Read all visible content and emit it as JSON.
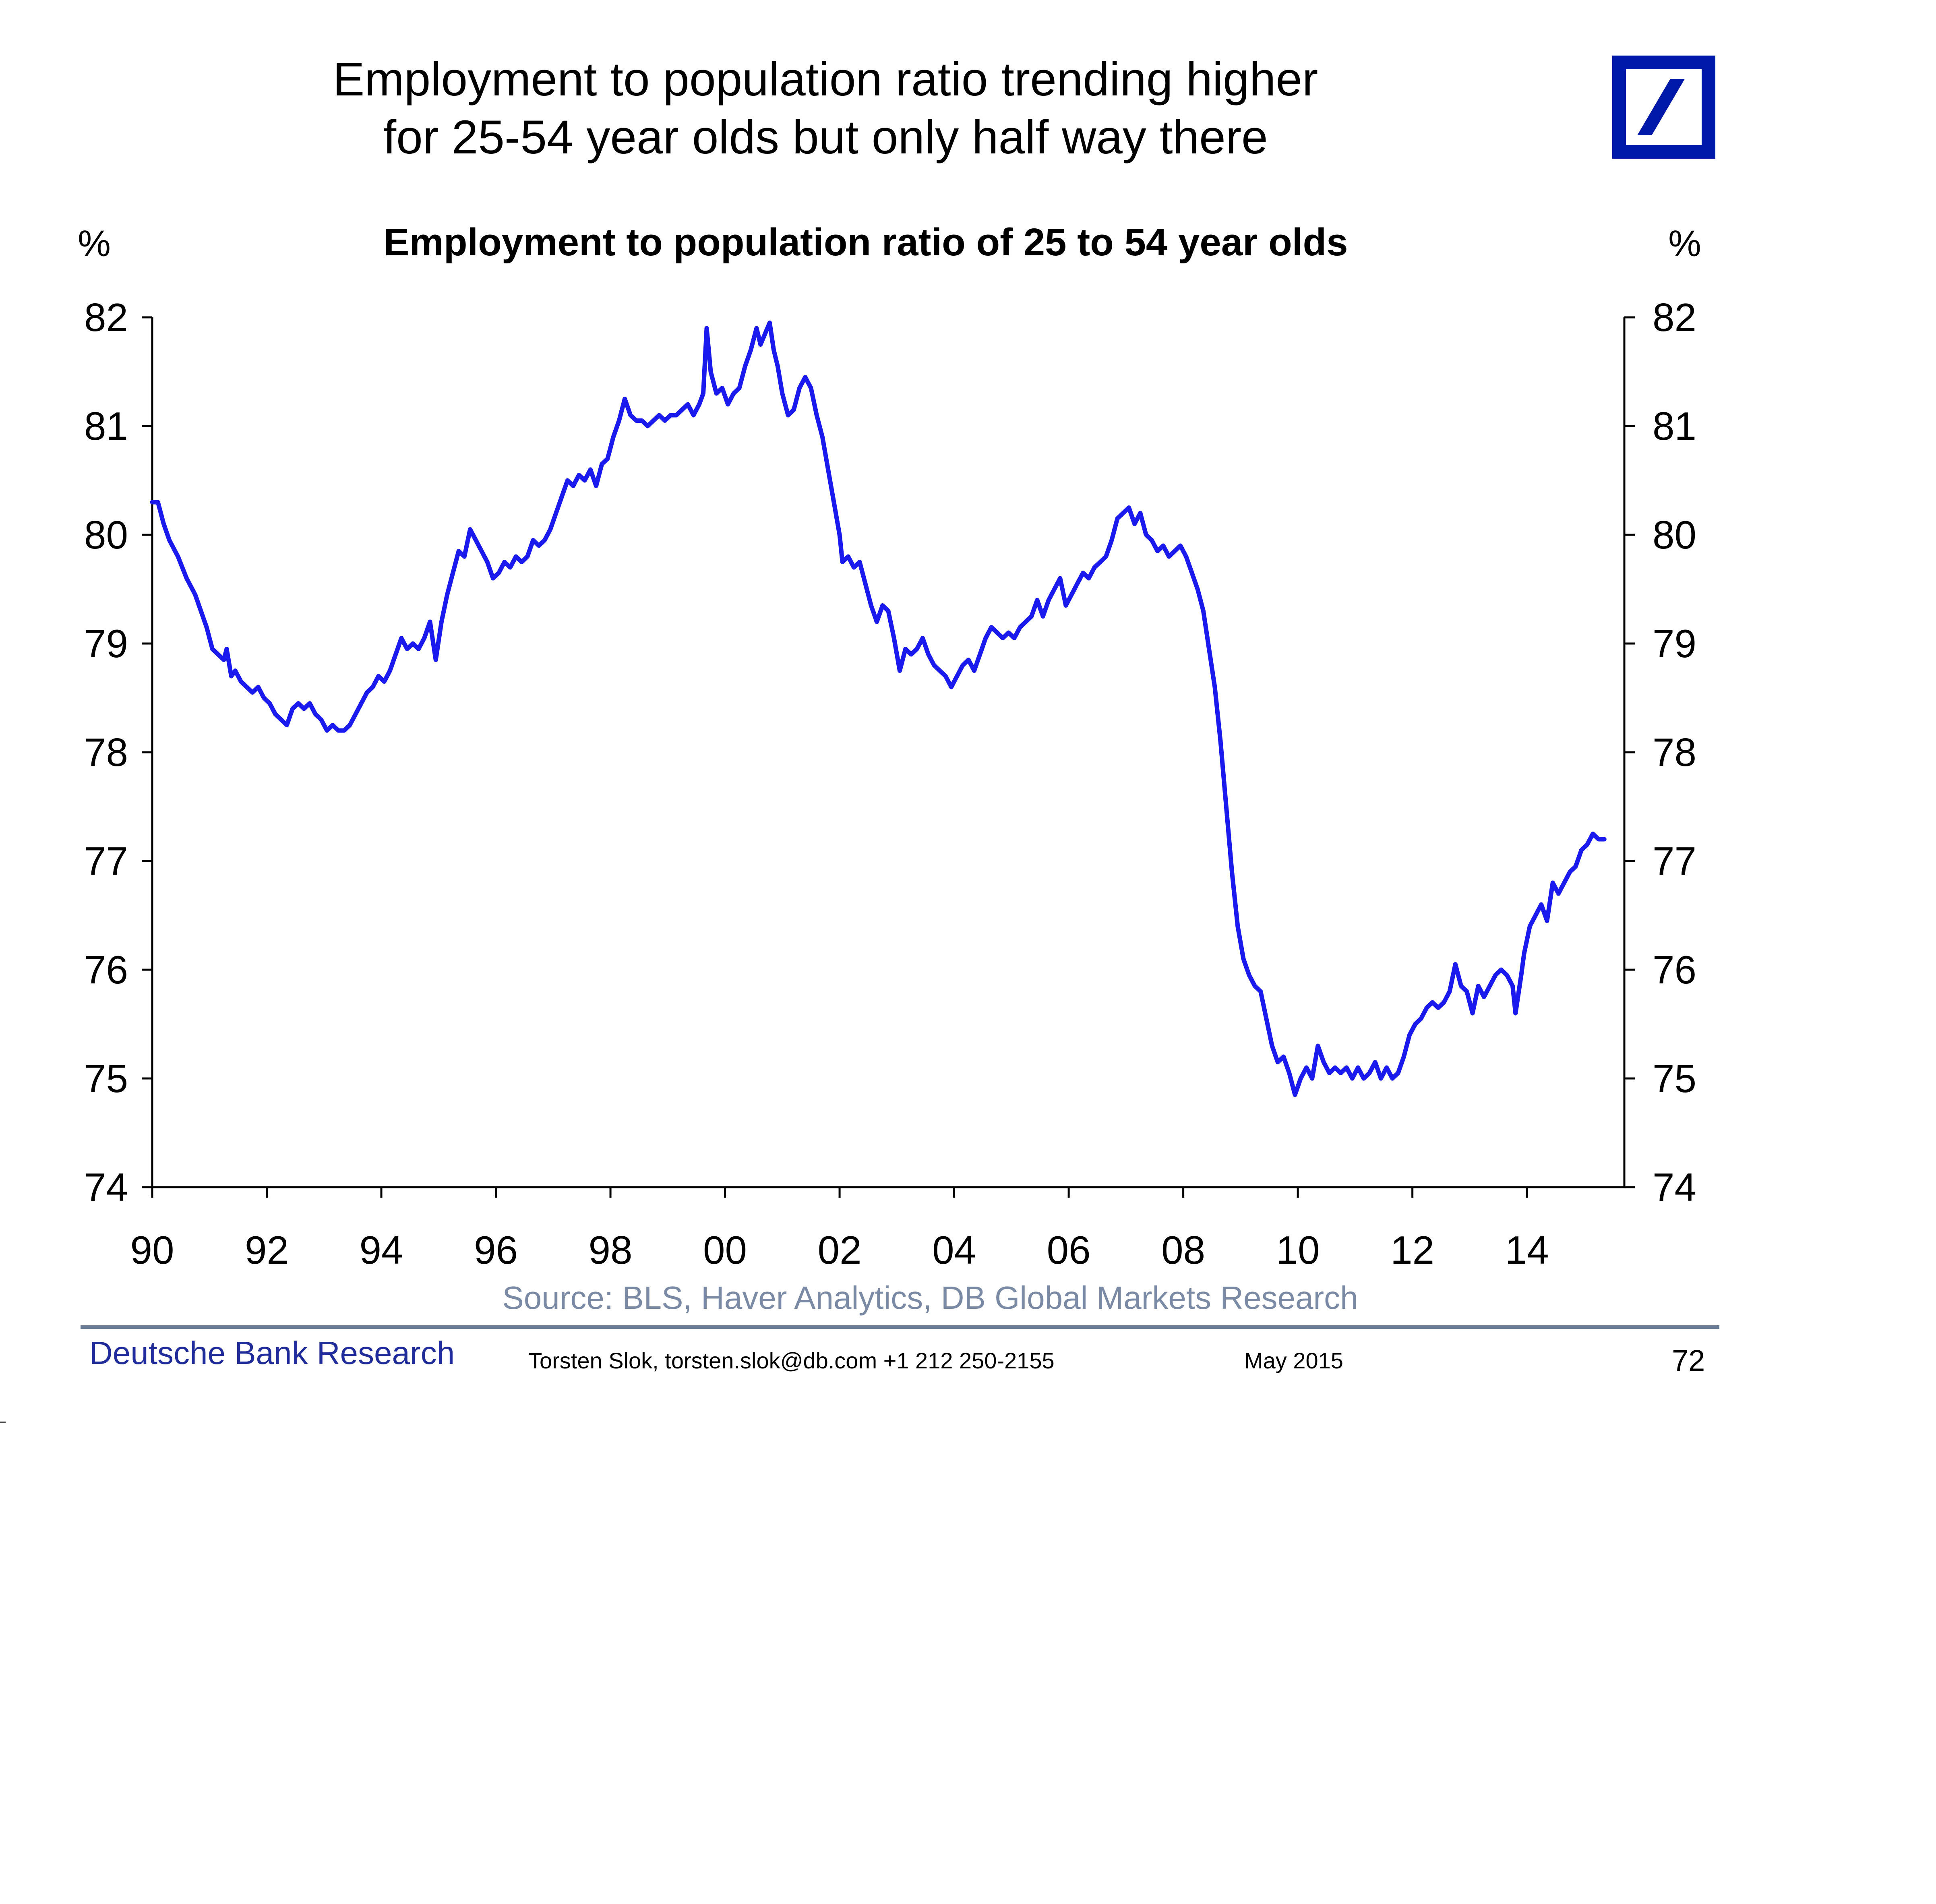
{
  "slide": {
    "title_line1": "Employment to population ratio trending higher",
    "title_line2": "for 25-54 year olds but only half way there",
    "logo": "deutsche-bank-logo",
    "brand_color": "#0018a8"
  },
  "footer": {
    "bank": "Deutsche Bank Research",
    "author": "Torsten Slok, torsten.slok@db.com  +1 212 250-2155",
    "date": "May 2015",
    "page_number": "72"
  },
  "chart_data": {
    "type": "line",
    "title": "Employment to population ratio of 25 to 54 year olds",
    "ylabel_left": "%",
    "ylabel_right": "%",
    "xlabel": "",
    "source": "Source: BLS, Haver Analytics, DB Global Markets Research",
    "ylim": [
      74,
      82
    ],
    "xlim": [
      1990,
      2015.7
    ],
    "y_ticks": [
      "74",
      "75",
      "76",
      "77",
      "78",
      "79",
      "80",
      "81",
      "82"
    ],
    "x_ticks": [
      {
        "value": 1990,
        "label": "90"
      },
      {
        "value": 1992,
        "label": "92"
      },
      {
        "value": 1994,
        "label": "94"
      },
      {
        "value": 1996,
        "label": "96"
      },
      {
        "value": 1998,
        "label": "98"
      },
      {
        "value": 2000,
        "label": "00"
      },
      {
        "value": 2002,
        "label": "02"
      },
      {
        "value": 2004,
        "label": "04"
      },
      {
        "value": 2006,
        "label": "06"
      },
      {
        "value": 2008,
        "label": "08"
      },
      {
        "value": 2010,
        "label": "10"
      },
      {
        "value": 2012,
        "label": "12"
      },
      {
        "value": 2014,
        "label": "14"
      }
    ],
    "grid": false,
    "line_color": "#1a1aee",
    "series": [
      {
        "name": "Employment to population ratio, 25-54",
        "points": [
          [
            1990.0,
            80.3
          ],
          [
            1990.1,
            80.3
          ],
          [
            1990.2,
            80.1
          ],
          [
            1990.3,
            79.95
          ],
          [
            1990.45,
            79.8
          ],
          [
            1990.6,
            79.6
          ],
          [
            1990.75,
            79.45
          ],
          [
            1990.85,
            79.3
          ],
          [
            1990.95,
            79.15
          ],
          [
            1991.05,
            78.95
          ],
          [
            1991.15,
            78.9
          ],
          [
            1991.25,
            78.85
          ],
          [
            1991.3,
            78.95
          ],
          [
            1991.38,
            78.7
          ],
          [
            1991.45,
            78.75
          ],
          [
            1991.55,
            78.65
          ],
          [
            1991.65,
            78.6
          ],
          [
            1991.75,
            78.55
          ],
          [
            1991.85,
            78.6
          ],
          [
            1991.95,
            78.5
          ],
          [
            1992.05,
            78.45
          ],
          [
            1992.15,
            78.35
          ],
          [
            1992.25,
            78.3
          ],
          [
            1992.35,
            78.25
          ],
          [
            1992.45,
            78.4
          ],
          [
            1992.55,
            78.45
          ],
          [
            1992.65,
            78.4
          ],
          [
            1992.75,
            78.45
          ],
          [
            1992.85,
            78.35
          ],
          [
            1992.95,
            78.3
          ],
          [
            1993.05,
            78.2
          ],
          [
            1993.15,
            78.25
          ],
          [
            1993.25,
            78.2
          ],
          [
            1993.35,
            78.2
          ],
          [
            1993.45,
            78.25
          ],
          [
            1993.55,
            78.35
          ],
          [
            1993.65,
            78.45
          ],
          [
            1993.75,
            78.55
          ],
          [
            1993.85,
            78.6
          ],
          [
            1993.95,
            78.7
          ],
          [
            1994.05,
            78.65
          ],
          [
            1994.15,
            78.75
          ],
          [
            1994.25,
            78.9
          ],
          [
            1994.35,
            79.05
          ],
          [
            1994.45,
            78.95
          ],
          [
            1994.55,
            79.0
          ],
          [
            1994.65,
            78.95
          ],
          [
            1994.75,
            79.05
          ],
          [
            1994.85,
            79.2
          ],
          [
            1994.95,
            78.85
          ],
          [
            1995.05,
            79.2
          ],
          [
            1995.15,
            79.45
          ],
          [
            1995.25,
            79.65
          ],
          [
            1995.35,
            79.85
          ],
          [
            1995.45,
            79.8
          ],
          [
            1995.55,
            80.05
          ],
          [
            1995.65,
            79.95
          ],
          [
            1995.75,
            79.85
          ],
          [
            1995.85,
            79.75
          ],
          [
            1995.95,
            79.6
          ],
          [
            1996.05,
            79.65
          ],
          [
            1996.15,
            79.75
          ],
          [
            1996.25,
            79.7
          ],
          [
            1996.35,
            79.8
          ],
          [
            1996.45,
            79.75
          ],
          [
            1996.55,
            79.8
          ],
          [
            1996.65,
            79.95
          ],
          [
            1996.75,
            79.9
          ],
          [
            1996.85,
            79.95
          ],
          [
            1996.95,
            80.05
          ],
          [
            1997.05,
            80.2
          ],
          [
            1997.15,
            80.35
          ],
          [
            1997.25,
            80.5
          ],
          [
            1997.35,
            80.45
          ],
          [
            1997.45,
            80.55
          ],
          [
            1997.55,
            80.5
          ],
          [
            1997.65,
            80.6
          ],
          [
            1997.75,
            80.45
          ],
          [
            1997.85,
            80.65
          ],
          [
            1997.95,
            80.7
          ],
          [
            1998.05,
            80.9
          ],
          [
            1998.15,
            81.05
          ],
          [
            1998.25,
            81.25
          ],
          [
            1998.35,
            81.1
          ],
          [
            1998.45,
            81.05
          ],
          [
            1998.55,
            81.05
          ],
          [
            1998.65,
            81.0
          ],
          [
            1998.75,
            81.05
          ],
          [
            1998.85,
            81.1
          ],
          [
            1998.95,
            81.05
          ],
          [
            1999.05,
            81.1
          ],
          [
            1999.15,
            81.1
          ],
          [
            1999.25,
            81.15
          ],
          [
            1999.35,
            81.2
          ],
          [
            1999.45,
            81.1
          ],
          [
            1999.55,
            81.2
          ],
          [
            1999.62,
            81.3
          ],
          [
            1999.68,
            81.9
          ],
          [
            1999.75,
            81.5
          ],
          [
            1999.85,
            81.3
          ],
          [
            1999.95,
            81.35
          ],
          [
            2000.05,
            81.2
          ],
          [
            2000.15,
            81.3
          ],
          [
            2000.25,
            81.35
          ],
          [
            2000.35,
            81.55
          ],
          [
            2000.45,
            81.7
          ],
          [
            2000.55,
            81.9
          ],
          [
            2000.62,
            81.75
          ],
          [
            2000.7,
            81.85
          ],
          [
            2000.78,
            81.95
          ],
          [
            2000.85,
            81.7
          ],
          [
            2000.92,
            81.55
          ],
          [
            2001.0,
            81.3
          ],
          [
            2001.1,
            81.1
          ],
          [
            2001.2,
            81.15
          ],
          [
            2001.3,
            81.35
          ],
          [
            2001.4,
            81.45
          ],
          [
            2001.5,
            81.35
          ],
          [
            2001.6,
            81.1
          ],
          [
            2001.7,
            80.9
          ],
          [
            2001.8,
            80.6
          ],
          [
            2001.9,
            80.3
          ],
          [
            2002.0,
            80.0
          ],
          [
            2002.05,
            79.75
          ],
          [
            2002.15,
            79.8
          ],
          [
            2002.25,
            79.7
          ],
          [
            2002.35,
            79.75
          ],
          [
            2002.45,
            79.55
          ],
          [
            2002.55,
            79.35
          ],
          [
            2002.65,
            79.2
          ],
          [
            2002.75,
            79.35
          ],
          [
            2002.85,
            79.3
          ],
          [
            2002.95,
            79.05
          ],
          [
            2003.05,
            78.75
          ],
          [
            2003.15,
            78.95
          ],
          [
            2003.25,
            78.9
          ],
          [
            2003.35,
            78.95
          ],
          [
            2003.45,
            79.05
          ],
          [
            2003.55,
            78.9
          ],
          [
            2003.65,
            78.8
          ],
          [
            2003.75,
            78.75
          ],
          [
            2003.85,
            78.7
          ],
          [
            2003.95,
            78.6
          ],
          [
            2004.05,
            78.7
          ],
          [
            2004.15,
            78.8
          ],
          [
            2004.25,
            78.85
          ],
          [
            2004.35,
            78.75
          ],
          [
            2004.45,
            78.9
          ],
          [
            2004.55,
            79.05
          ],
          [
            2004.65,
            79.15
          ],
          [
            2004.75,
            79.1
          ],
          [
            2004.85,
            79.05
          ],
          [
            2004.95,
            79.1
          ],
          [
            2005.05,
            79.05
          ],
          [
            2005.15,
            79.15
          ],
          [
            2005.25,
            79.2
          ],
          [
            2005.35,
            79.25
          ],
          [
            2005.45,
            79.4
          ],
          [
            2005.55,
            79.25
          ],
          [
            2005.65,
            79.4
          ],
          [
            2005.75,
            79.5
          ],
          [
            2005.85,
            79.6
          ],
          [
            2005.95,
            79.35
          ],
          [
            2006.05,
            79.45
          ],
          [
            2006.15,
            79.55
          ],
          [
            2006.25,
            79.65
          ],
          [
            2006.35,
            79.6
          ],
          [
            2006.45,
            79.7
          ],
          [
            2006.55,
            79.75
          ],
          [
            2006.65,
            79.8
          ],
          [
            2006.75,
            79.95
          ],
          [
            2006.85,
            80.15
          ],
          [
            2006.95,
            80.2
          ],
          [
            2007.05,
            80.25
          ],
          [
            2007.15,
            80.1
          ],
          [
            2007.25,
            80.2
          ],
          [
            2007.35,
            80.0
          ],
          [
            2007.45,
            79.95
          ],
          [
            2007.55,
            79.85
          ],
          [
            2007.65,
            79.9
          ],
          [
            2007.75,
            79.8
          ],
          [
            2007.85,
            79.85
          ],
          [
            2007.95,
            79.9
          ],
          [
            2008.05,
            79.8
          ],
          [
            2008.15,
            79.65
          ],
          [
            2008.25,
            79.5
          ],
          [
            2008.35,
            79.3
          ],
          [
            2008.45,
            78.95
          ],
          [
            2008.55,
            78.6
          ],
          [
            2008.65,
            78.1
          ],
          [
            2008.75,
            77.5
          ],
          [
            2008.85,
            76.9
          ],
          [
            2008.95,
            76.4
          ],
          [
            2009.05,
            76.1
          ],
          [
            2009.15,
            75.95
          ],
          [
            2009.25,
            75.85
          ],
          [
            2009.35,
            75.8
          ],
          [
            2009.45,
            75.55
          ],
          [
            2009.55,
            75.3
          ],
          [
            2009.65,
            75.15
          ],
          [
            2009.75,
            75.2
          ],
          [
            2009.85,
            75.05
          ],
          [
            2009.95,
            74.85
          ],
          [
            2010.05,
            75.0
          ],
          [
            2010.15,
            75.1
          ],
          [
            2010.25,
            75.0
          ],
          [
            2010.35,
            75.3
          ],
          [
            2010.45,
            75.15
          ],
          [
            2010.55,
            75.05
          ],
          [
            2010.65,
            75.1
          ],
          [
            2010.75,
            75.05
          ],
          [
            2010.85,
            75.1
          ],
          [
            2010.95,
            75.0
          ],
          [
            2011.05,
            75.1
          ],
          [
            2011.15,
            75.0
          ],
          [
            2011.25,
            75.05
          ],
          [
            2011.35,
            75.15
          ],
          [
            2011.45,
            75.0
          ],
          [
            2011.55,
            75.1
          ],
          [
            2011.65,
            75.0
          ],
          [
            2011.75,
            75.05
          ],
          [
            2011.85,
            75.2
          ],
          [
            2011.95,
            75.4
          ],
          [
            2012.05,
            75.5
          ],
          [
            2012.15,
            75.55
          ],
          [
            2012.25,
            75.65
          ],
          [
            2012.35,
            75.7
          ],
          [
            2012.45,
            75.65
          ],
          [
            2012.55,
            75.7
          ],
          [
            2012.65,
            75.8
          ],
          [
            2012.75,
            76.05
          ],
          [
            2012.85,
            75.85
          ],
          [
            2012.95,
            75.8
          ],
          [
            2013.05,
            75.6
          ],
          [
            2013.15,
            75.85
          ],
          [
            2013.25,
            75.75
          ],
          [
            2013.35,
            75.85
          ],
          [
            2013.45,
            75.95
          ],
          [
            2013.55,
            76.0
          ],
          [
            2013.65,
            75.95
          ],
          [
            2013.75,
            75.85
          ],
          [
            2013.8,
            75.6
          ],
          [
            2013.9,
            75.95
          ],
          [
            2013.95,
            76.15
          ],
          [
            2014.05,
            76.4
          ],
          [
            2014.15,
            76.5
          ],
          [
            2014.25,
            76.6
          ],
          [
            2014.35,
            76.45
          ],
          [
            2014.45,
            76.8
          ],
          [
            2014.55,
            76.7
          ],
          [
            2014.65,
            76.8
          ],
          [
            2014.75,
            76.9
          ],
          [
            2014.85,
            76.95
          ],
          [
            2014.95,
            77.1
          ],
          [
            2015.05,
            77.15
          ],
          [
            2015.15,
            77.25
          ],
          [
            2015.25,
            77.2
          ],
          [
            2015.35,
            77.2
          ]
        ]
      }
    ]
  }
}
